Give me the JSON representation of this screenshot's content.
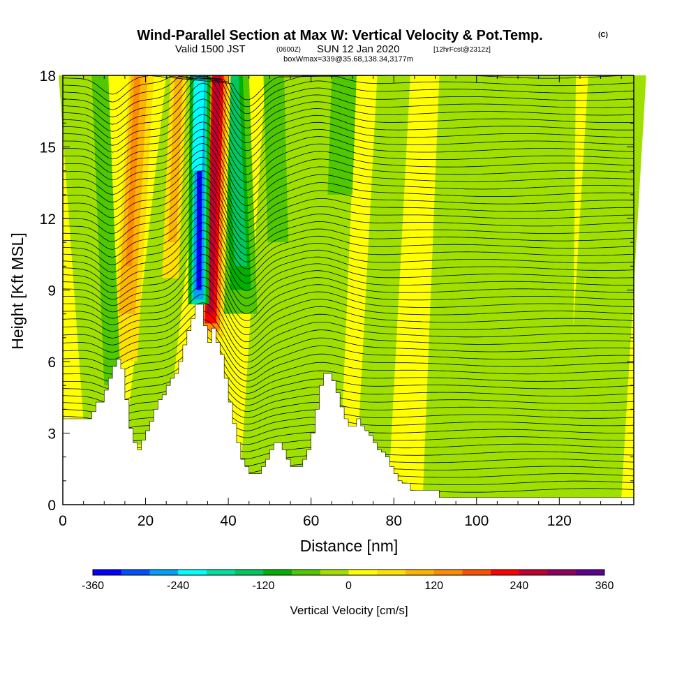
{
  "title": {
    "main": "Wind-Parallel Section at Max W: Vertical Velocity & Pot.Temp.",
    "copyright": "(C)",
    "valid_prefix": "Valid 1500 JST",
    "valid_utc": "(0600Z)",
    "valid_date": "SUN 12 Jan 2020",
    "forecast": "[12hrFcst@2312z]",
    "box_note": "boxWmax=339@35.68,138.34,3177m"
  },
  "colors": {
    "terrain": "#ffffff",
    "contour": "#000000",
    "frame": "#000000",
    "bins": [
      "#0000ff",
      "#0050ff",
      "#00a0ff",
      "#00ffff",
      "#00e0a0",
      "#00c860",
      "#00b000",
      "#50c800",
      "#a0e000",
      "#ffff00",
      "#ffe000",
      "#ffb400",
      "#ff8c00",
      "#ff5000",
      "#ff0000",
      "#c00030",
      "#900060",
      "#600090"
    ]
  },
  "chart_data": {
    "type": "heatmap",
    "title": "Wind-Parallel Section at Max W: Vertical Velocity & Pot.Temp.",
    "xlabel": "Distance [nm]",
    "ylabel": "Height [Kft MSL]",
    "xlim": [
      0,
      138
    ],
    "ylim": [
      0,
      18
    ],
    "xticks": [
      "0",
      "20",
      "40",
      "60",
      "80",
      "100",
      "120"
    ],
    "yticks": [
      "0",
      "3",
      "6",
      "9",
      "12",
      "15",
      "18"
    ],
    "grid": false,
    "colorbar": {
      "label": "Vertical Velocity [cm/s]",
      "levels": [
        -360,
        -320,
        -280,
        -240,
        -200,
        -160,
        -120,
        -80,
        -40,
        0,
        40,
        80,
        120,
        160,
        200,
        240,
        280,
        320,
        360
      ],
      "tick_labels": [
        "-360",
        "-240",
        "-120",
        "0",
        "120",
        "240",
        "360"
      ],
      "placement": "bottom"
    },
    "terrain_profile": {
      "x_nm": [
        0,
        5,
        7,
        8,
        10,
        11,
        12,
        13,
        14,
        15,
        16,
        17,
        18,
        19,
        20,
        21,
        22,
        23,
        24,
        25,
        26,
        27,
        28,
        29,
        30,
        31,
        32,
        33,
        34,
        35,
        36,
        37,
        38,
        39,
        40,
        41,
        42,
        43,
        44,
        45,
        46,
        47,
        48,
        49,
        50,
        51,
        52,
        53,
        54,
        55,
        56,
        57,
        58,
        59,
        60,
        61,
        62,
        63,
        64,
        65,
        66,
        67,
        68,
        69,
        70,
        71,
        72,
        73,
        74,
        75,
        76,
        77,
        78,
        79,
        80,
        81,
        82,
        84,
        86,
        88,
        90,
        91,
        92,
        94,
        96,
        98,
        100,
        105,
        110,
        115,
        120,
        125,
        130,
        135,
        138
      ],
      "height_kft": [
        3.6,
        3.6,
        3.9,
        4.3,
        4.8,
        5.3,
        5.8,
        6.1,
        5.7,
        4.4,
        3.2,
        2.6,
        2.3,
        2.7,
        3.1,
        3.5,
        4.0,
        4.4,
        4.6,
        5.0,
        5.3,
        5.5,
        6.0,
        6.7,
        7.3,
        7.8,
        8.4,
        8.4,
        7.5,
        6.8,
        7.4,
        6.8,
        6.3,
        5.3,
        4.3,
        3.4,
        2.6,
        1.9,
        1.6,
        1.3,
        1.3,
        1.3,
        1.6,
        1.9,
        2.3,
        2.6,
        2.6,
        2.3,
        1.9,
        1.6,
        1.6,
        1.6,
        1.9,
        2.3,
        3.0,
        4.0,
        5.0,
        5.5,
        5.5,
        5.2,
        4.7,
        4.1,
        3.6,
        3.3,
        3.3,
        3.6,
        3.3,
        3.1,
        2.9,
        2.6,
        2.3,
        2.2,
        2.0,
        1.6,
        1.3,
        1.0,
        0.9,
        0.6,
        0.6,
        0.6,
        0.6,
        0.3,
        0.3,
        0.3,
        0.3,
        0.3,
        0.3,
        0.3,
        0.3,
        0.3,
        0.3,
        0.3,
        0.3,
        0.3,
        0.3
      ]
    },
    "vertical_velocity_features_cm_s": [
      {
        "x_nm": 33,
        "z_kft": [
          8.5,
          18
        ],
        "w_peak": -300
      },
      {
        "x_nm": 37,
        "z_kft": [
          7.0,
          18
        ],
        "w_peak": 290
      },
      {
        "x_nm": 43,
        "z_kft": [
          9.0,
          18
        ],
        "w_peak": -130
      },
      {
        "x_nm": 15,
        "z_kft": [
          8.0,
          18
        ],
        "w_peak": 150
      },
      {
        "x_nm": 26,
        "z_kft": [
          10.0,
          18
        ],
        "w_peak": 90
      }
    ]
  }
}
